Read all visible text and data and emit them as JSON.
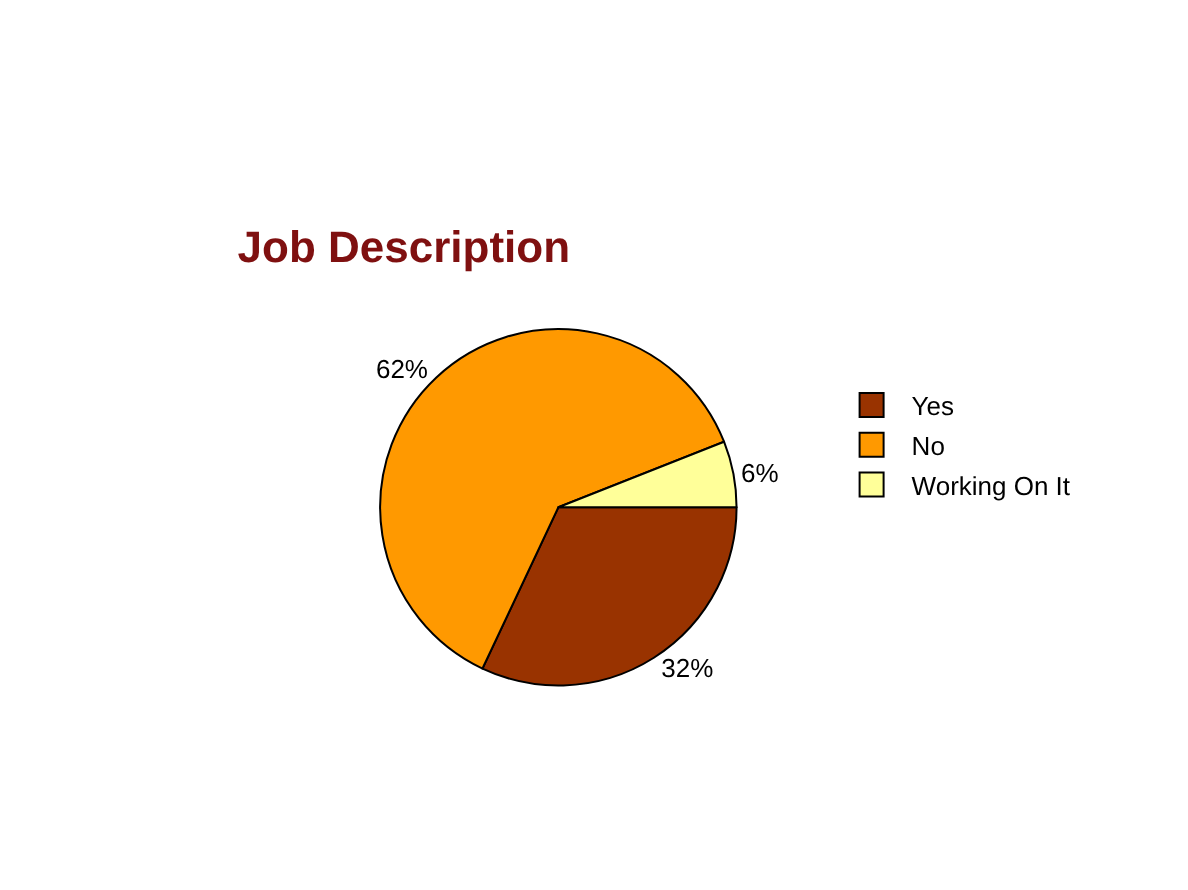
{
  "chart_data": {
    "type": "pie",
    "title": "Job Description",
    "categories": [
      "Yes",
      "No",
      "Working On It"
    ],
    "values": [
      32,
      62,
      6
    ],
    "colors": [
      "#993300",
      "#ff9900",
      "#ffff99"
    ],
    "value_labels": [
      "32%",
      "62%",
      "6%"
    ],
    "legend": "right"
  }
}
